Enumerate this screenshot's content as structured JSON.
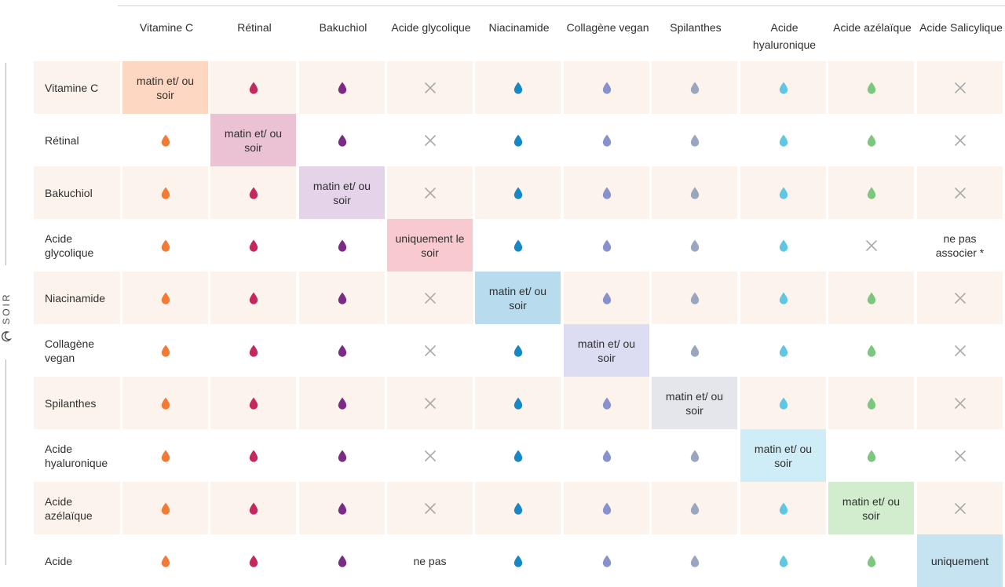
{
  "side_label": "SOIR",
  "columns": [
    {
      "label": "Vitamine C",
      "color": "#f27a35"
    },
    {
      "label": "Rétinal",
      "color": "#c4285e"
    },
    {
      "label": "Bakuchiol",
      "color": "#7a2b83"
    },
    {
      "label": "Acide glycolique",
      "color": "#aaaaaa"
    },
    {
      "label": "Niacinamide",
      "color": "#1788c4"
    },
    {
      "label": "Collagène vegan",
      "color": "#8792cc"
    },
    {
      "label": "Spilanthes",
      "color": "#99a6bd"
    },
    {
      "label": "Acide hyaluronique",
      "color": "#5fc6e3"
    },
    {
      "label": "Acide azélaïque",
      "color": "#7bc77e"
    },
    {
      "label": "Acide Salicylique",
      "color": "#aaaaaa"
    }
  ],
  "rows": [
    {
      "label": "Vitamine C",
      "cells": [
        "T:matin et/ ou soir",
        "D",
        "D",
        "X",
        "D",
        "D",
        "D",
        "D",
        "D",
        "X"
      ]
    },
    {
      "label": "Rétinal",
      "cells": [
        "D",
        "T:matin et/ ou soir",
        "D",
        "X",
        "D",
        "D",
        "D",
        "D",
        "D",
        "X"
      ]
    },
    {
      "label": "Bakuchiol",
      "cells": [
        "D",
        "D",
        "T:matin et/ ou soir",
        "X",
        "D",
        "D",
        "D",
        "D",
        "D",
        "X"
      ]
    },
    {
      "label": "Acide glycolique",
      "cells": [
        "D",
        "D",
        "D",
        "T:uniquement le soir",
        "D",
        "D",
        "D",
        "D",
        "X",
        "T:ne pas associer *"
      ]
    },
    {
      "label": "Niacinamide",
      "cells": [
        "D",
        "D",
        "D",
        "X",
        "T:matin et/ ou soir",
        "D",
        "D",
        "D",
        "D",
        "X"
      ]
    },
    {
      "label": "Collagène vegan",
      "cells": [
        "D",
        "D",
        "D",
        "X",
        "D",
        "T:matin et/ ou soir",
        "D",
        "D",
        "D",
        "X"
      ]
    },
    {
      "label": "Spilanthes",
      "cells": [
        "D",
        "D",
        "D",
        "X",
        "D",
        "D",
        "T:matin et/ ou soir",
        "D",
        "D",
        "X"
      ]
    },
    {
      "label": "Acide hyaluronique",
      "cells": [
        "D",
        "D",
        "D",
        "X",
        "D",
        "D",
        "D",
        "T:matin et/ ou soir",
        "D",
        "X"
      ]
    },
    {
      "label": "Acide azélaïque",
      "cells": [
        "D",
        "D",
        "D",
        "X",
        "D",
        "D",
        "D",
        "D",
        "T:matin et/ ou soir",
        "X"
      ]
    },
    {
      "label": "Acide",
      "cells": [
        "D",
        "D",
        "D",
        "T:ne pas",
        "D",
        "D",
        "D",
        "D",
        "D",
        "T:uniquement"
      ]
    }
  ]
}
